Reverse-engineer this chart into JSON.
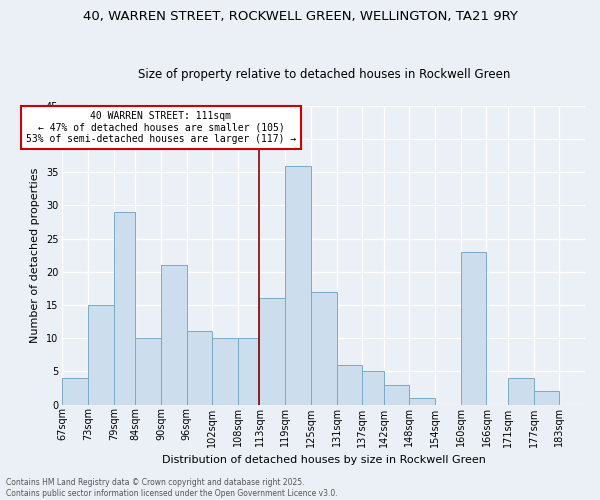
{
  "title": "40, WARREN STREET, ROCKWELL GREEN, WELLINGTON, TA21 9RY",
  "subtitle": "Size of property relative to detached houses in Rockwell Green",
  "xlabel": "Distribution of detached houses by size in Rockwell Green",
  "ylabel": "Number of detached properties",
  "footer_line1": "Contains HM Land Registry data © Crown copyright and database right 2025.",
  "footer_line2": "Contains public sector information licensed under the Open Government Licence v3.0.",
  "bins": [
    "67sqm",
    "73sqm",
    "79sqm",
    "84sqm",
    "90sqm",
    "96sqm",
    "102sqm",
    "108sqm",
    "113sqm",
    "119sqm",
    "125sqm",
    "131sqm",
    "137sqm",
    "142sqm",
    "148sqm",
    "154sqm",
    "160sqm",
    "166sqm",
    "171sqm",
    "177sqm",
    "183sqm"
  ],
  "values": [
    4,
    15,
    29,
    10,
    21,
    11,
    10,
    10,
    16,
    36,
    17,
    6,
    5,
    3,
    1,
    0,
    23,
    0,
    4,
    2,
    0
  ],
  "bar_color": "#ccdded",
  "bar_edge_color": "#7aaac8",
  "vline_x_idx": 8,
  "vline_color": "#8b0000",
  "annotation_title": "40 WARREN STREET: 111sqm",
  "annotation_line1": "← 47% of detached houses are smaller (105)",
  "annotation_line2": "53% of semi-detached houses are larger (117) →",
  "annotation_box_color": "#ffffff",
  "annotation_border_color": "#cc0000",
  "ylim": [
    0,
    45
  ],
  "yticks": [
    0,
    5,
    10,
    15,
    20,
    25,
    30,
    35,
    40,
    45
  ],
  "bg_color": "#eaf0f6",
  "grid_color": "#ffffff",
  "title_fontsize": 9.5,
  "subtitle_fontsize": 8.5,
  "xlabel_fontsize": 8,
  "ylabel_fontsize": 8,
  "tick_fontsize": 7,
  "annotation_fontsize": 7,
  "footer_fontsize": 5.5,
  "bin_edges": [
    67,
    73,
    79,
    84,
    90,
    96,
    102,
    108,
    113,
    119,
    125,
    131,
    137,
    142,
    148,
    154,
    160,
    166,
    171,
    177,
    183
  ]
}
